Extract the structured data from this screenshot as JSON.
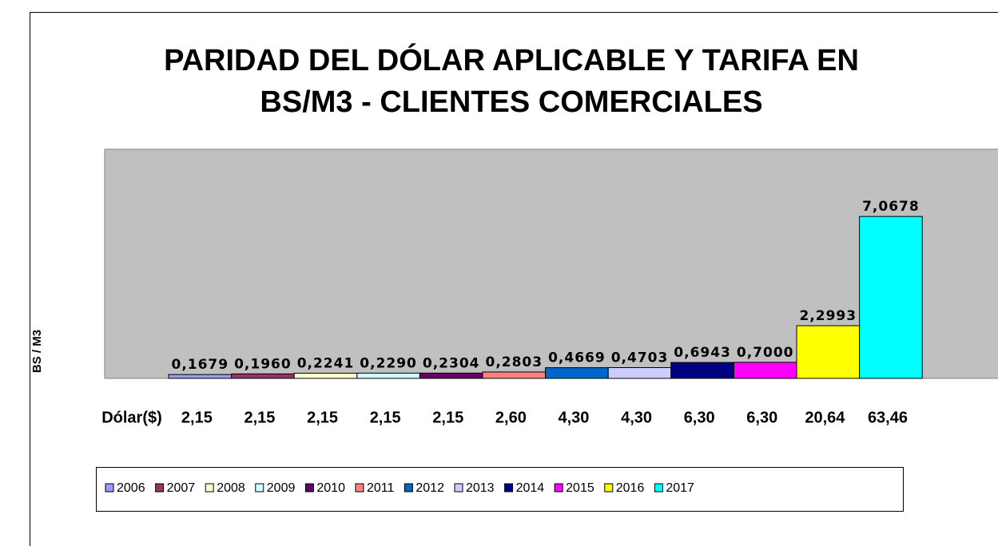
{
  "chart_data": {
    "type": "bar",
    "title_lines": [
      "PARIDAD DEL DÓLAR APLICABLE Y TARIFA EN",
      "BS/M3 - CLIENTES COMERCIALES"
    ],
    "y_label": "BS / M3",
    "ylim": [
      0,
      10
    ],
    "dollar_row_label": "Dólar($)",
    "dollar_labels": [
      "2,15",
      "2,15",
      "2,15",
      "2,15",
      "2,15",
      "2,60",
      "4,30",
      "4,30",
      "6,30",
      "6,30",
      "20,64",
      "63,46"
    ],
    "series": [
      {
        "name": "2006",
        "color": "#9999ff",
        "values": [
          0.1679
        ],
        "value_labels": [
          "0,1679"
        ]
      },
      {
        "name": "2007",
        "color": "#993366",
        "values": [
          0.196
        ],
        "value_labels": [
          "0,1960"
        ]
      },
      {
        "name": "2008",
        "color": "#ffffcc",
        "values": [
          0.2241
        ],
        "value_labels": [
          "0,2241"
        ]
      },
      {
        "name": "2009",
        "color": "#ccffff",
        "values": [
          0.229
        ],
        "value_labels": [
          "0,2290"
        ]
      },
      {
        "name": "2010",
        "color": "#660066",
        "values": [
          0.2304
        ],
        "value_labels": [
          "0,2304"
        ]
      },
      {
        "name": "2011",
        "color": "#ff8080",
        "values": [
          0.2803
        ],
        "value_labels": [
          "0,2803"
        ]
      },
      {
        "name": "2012",
        "color": "#0066cc",
        "values": [
          0.4669
        ],
        "value_labels": [
          "0,4669"
        ]
      },
      {
        "name": "2013",
        "color": "#ccccff",
        "values": [
          0.4703
        ],
        "value_labels": [
          "0,4703"
        ]
      },
      {
        "name": "2014",
        "color": "#000080",
        "values": [
          0.6943
        ],
        "value_labels": [
          "0,6943"
        ]
      },
      {
        "name": "2015",
        "color": "#ff00ff",
        "values": [
          0.7
        ],
        "value_labels": [
          "0,7000"
        ]
      },
      {
        "name": "2016",
        "color": "#ffff00",
        "values": [
          2.2993
        ],
        "value_labels": [
          "2,2993"
        ]
      },
      {
        "name": "2017",
        "color": "#00ffff",
        "values": [
          7.0678
        ],
        "value_labels": [
          "7,0678"
        ]
      }
    ]
  }
}
